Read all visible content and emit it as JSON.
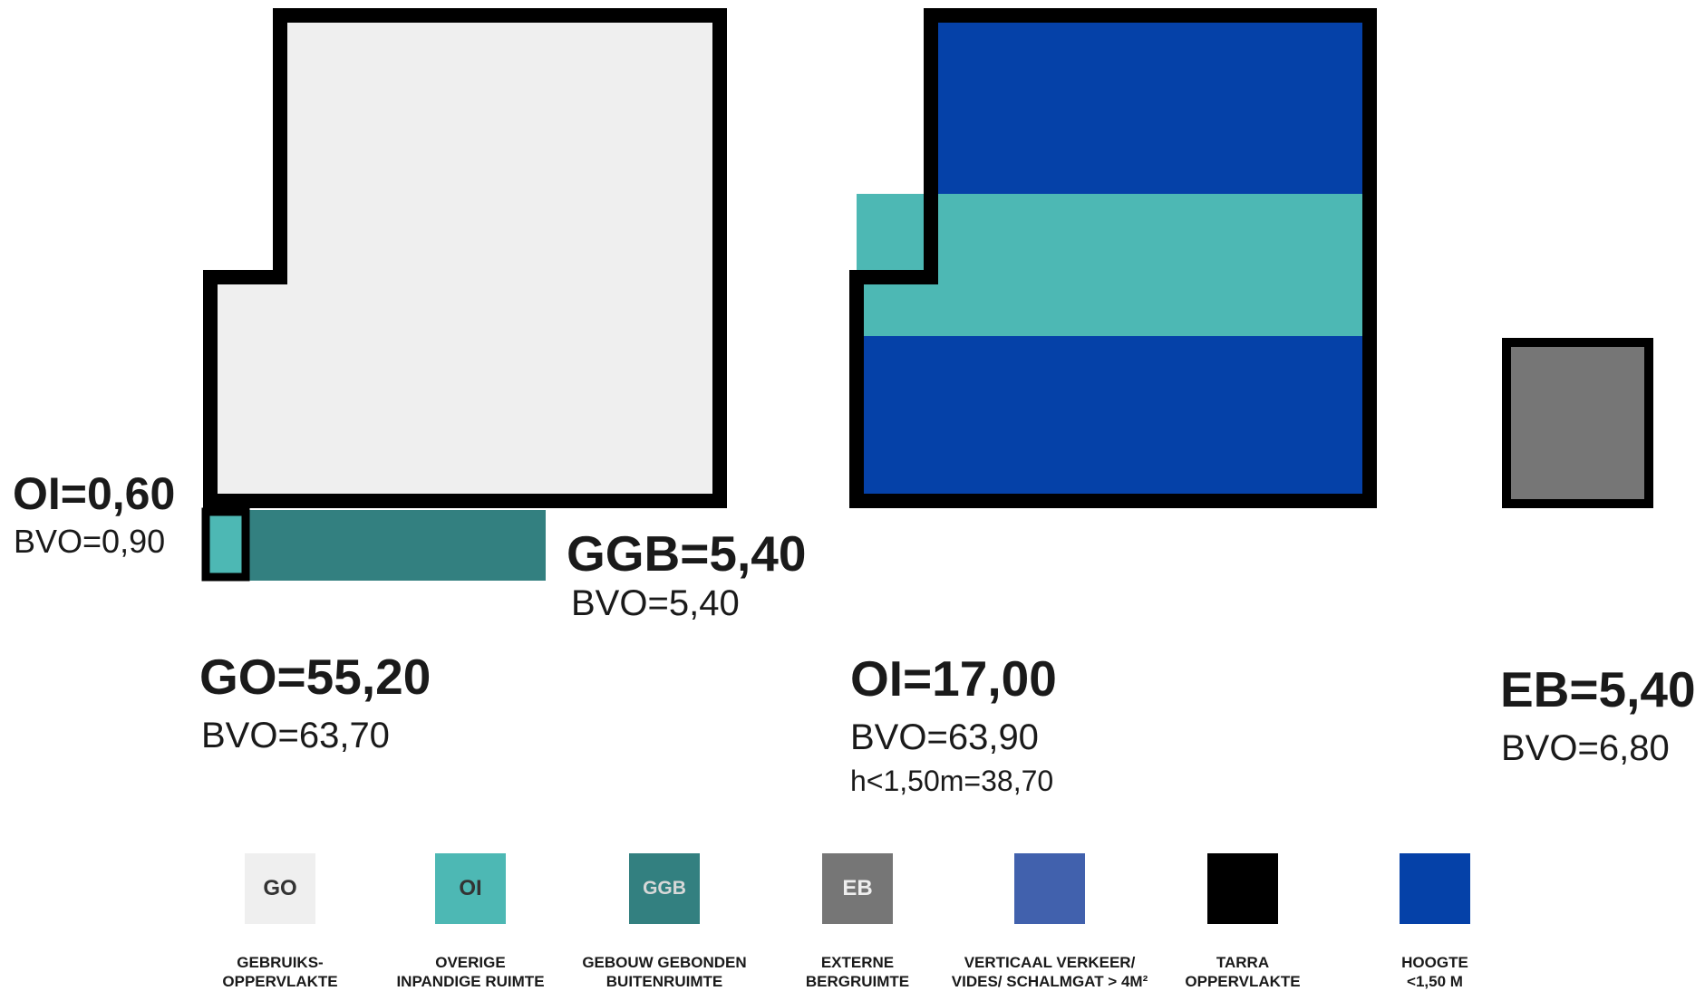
{
  "colors": {
    "go": "#efefef",
    "oi": "#4db8b4",
    "ggb": "#338080",
    "eb": "#767676",
    "verkeer": "#4161ad",
    "tarra": "#000000",
    "hoogte": "#0541a8"
  },
  "annotations": {
    "oi_small_value": "OI=0,60",
    "oi_small_bvo": "BVO=0,90",
    "ggb_value": "GGB=5,40",
    "ggb_bvo": "BVO=5,40",
    "go_value": "GO=55,20",
    "go_bvo": "BVO=63,70",
    "oi_value": "OI=17,00",
    "oi_bvo": "BVO=63,90",
    "oi_low_height": "h<1,50m=38,70",
    "eb_value": "EB=5,40",
    "eb_bvo": "BVO=6,80"
  },
  "legend": [
    {
      "code": "GO",
      "label": "GEBRUIKS-\nOPPERVLAKTE",
      "color": "#efefef",
      "text_color": "#333333"
    },
    {
      "code": "OI",
      "label": "OVERIGE\nINPANDIGE RUIMTE",
      "color": "#4db8b4",
      "text_color": "#333333"
    },
    {
      "code": "GGB",
      "label": "GEBOUW GEBONDEN\nBUITENRUIMTE",
      "color": "#338080",
      "text_color": "#d8d8d8"
    },
    {
      "code": "EB",
      "label": "EXTERNE\nBERGRUIMTE",
      "color": "#767676",
      "text_color": "#eeeeee"
    },
    {
      "code": "",
      "label": "VERTICAAL VERKEER/\nVIDES/ SCHALMGAT > 4M²",
      "color": "#4161ad",
      "text_color": "#ffffff"
    },
    {
      "code": "",
      "label": "TARRA\nOPPERVLAKTE",
      "color": "#000000",
      "text_color": "#ffffff"
    },
    {
      "code": "",
      "label": "HOOGTE\n<1,50 M",
      "color": "#0541a8",
      "text_color": "#ffffff"
    }
  ]
}
